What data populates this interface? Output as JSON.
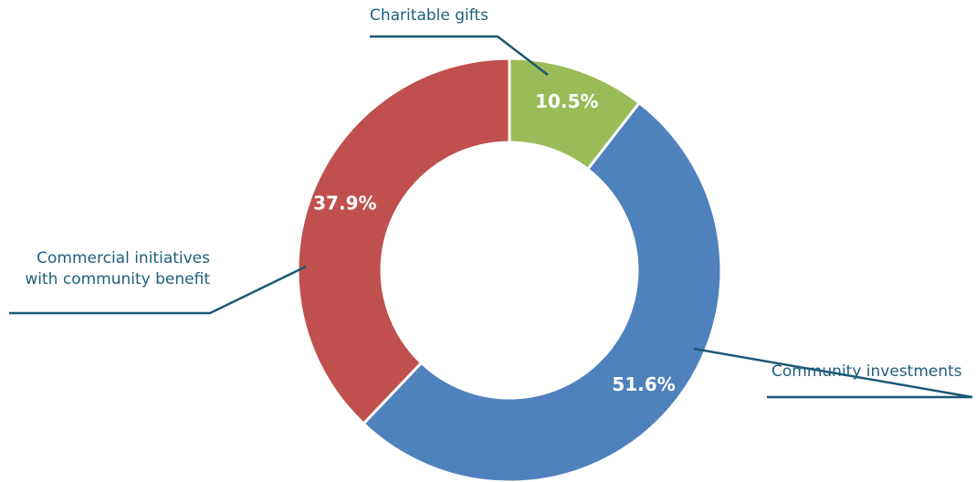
{
  "chart_data": {
    "type": "pie",
    "donut": true,
    "categories": [
      "Charitable gifts",
      "Community investments",
      "Commercial initiatives\nwith community benefit"
    ],
    "values": [
      10.5,
      51.6,
      37.9
    ],
    "value_labels": [
      "10.5%",
      "51.6%",
      "37.9%"
    ],
    "colors": [
      "#9bbb59",
      "#4f81bd",
      "#c0504d"
    ]
  }
}
